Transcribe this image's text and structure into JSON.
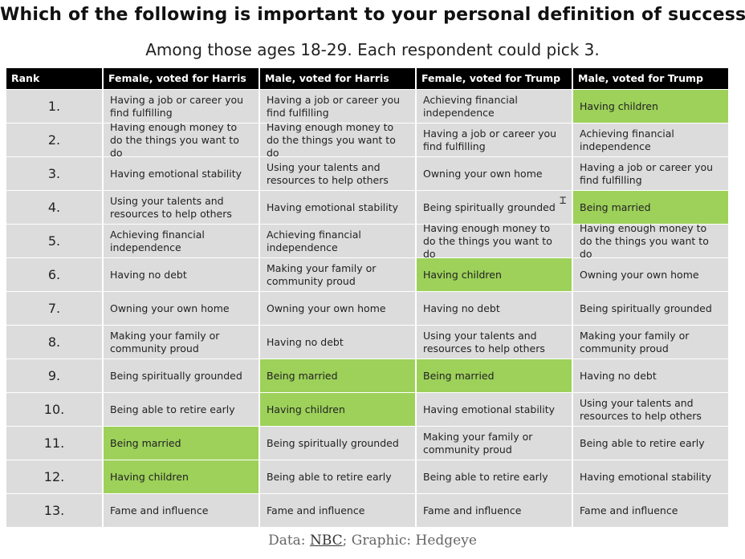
{
  "title": "Which of the following is important to your personal definition of success?",
  "subtitle": "Among those ages 18-29. Each respondent could pick 3.",
  "colors": {
    "header_bg": "#000000",
    "cell_bg": "#dcdcdc",
    "highlight": "#9dd15a"
  },
  "table": {
    "headers": [
      "Rank",
      "Female, voted for Harris",
      "Male, voted for Harris",
      "Female, voted for Trump",
      "Male, voted for Trump"
    ],
    "rows": [
      {
        "rank": "1.",
        "cells": [
          {
            "text": "Having a job or career you find fulfilling",
            "highlight": false
          },
          {
            "text": "Having a job or career you find fulfilling",
            "highlight": false
          },
          {
            "text": "Achieving financial independence",
            "highlight": false
          },
          {
            "text": "Having children",
            "highlight": true
          }
        ]
      },
      {
        "rank": "2.",
        "cells": [
          {
            "text": "Having enough money to do the things you want to do",
            "highlight": false
          },
          {
            "text": "Having enough money to do the things you want to do",
            "highlight": false
          },
          {
            "text": "Having a job or career you find fulfilling",
            "highlight": false
          },
          {
            "text": "Achieving financial independence",
            "highlight": false
          }
        ]
      },
      {
        "rank": "3.",
        "cells": [
          {
            "text": "Having emotional stability",
            "highlight": false
          },
          {
            "text": "Using your talents and resources to help others",
            "highlight": false
          },
          {
            "text": "Owning your own home",
            "highlight": false
          },
          {
            "text": "Having a job or career you find fulfilling",
            "highlight": false
          }
        ]
      },
      {
        "rank": "4.",
        "cells": [
          {
            "text": "Using your talents and resources to help others",
            "highlight": false
          },
          {
            "text": "Having emotional stability",
            "highlight": false
          },
          {
            "text": "Being spiritually grounded",
            "highlight": false
          },
          {
            "text": "Being married",
            "highlight": true
          }
        ]
      },
      {
        "rank": "5.",
        "cells": [
          {
            "text": "Achieving financial independence",
            "highlight": false
          },
          {
            "text": "Achieving financial independence",
            "highlight": false
          },
          {
            "text": "Having enough money to do the things you want to do",
            "highlight": false
          },
          {
            "text": "Having enough money to do the things you want to do",
            "highlight": false
          }
        ]
      },
      {
        "rank": "6.",
        "cells": [
          {
            "text": "Having no debt",
            "highlight": false
          },
          {
            "text": "Making your family or community proud",
            "highlight": false
          },
          {
            "text": "Having children",
            "highlight": true
          },
          {
            "text": "Owning your own home",
            "highlight": false
          }
        ]
      },
      {
        "rank": "7.",
        "cells": [
          {
            "text": "Owning your own home",
            "highlight": false
          },
          {
            "text": "Owning your own home",
            "highlight": false
          },
          {
            "text": "Having no debt",
            "highlight": false
          },
          {
            "text": "Being spiritually grounded",
            "highlight": false
          }
        ]
      },
      {
        "rank": "8.",
        "cells": [
          {
            "text": "Making your family or community proud",
            "highlight": false
          },
          {
            "text": "Having no debt",
            "highlight": false
          },
          {
            "text": "Using your talents and resources to help others",
            "highlight": false
          },
          {
            "text": "Making your family or community proud",
            "highlight": false
          }
        ]
      },
      {
        "rank": "9.",
        "cells": [
          {
            "text": "Being spiritually grounded",
            "highlight": false
          },
          {
            "text": "Being married",
            "highlight": true
          },
          {
            "text": "Being married",
            "highlight": true
          },
          {
            "text": "Having no debt",
            "highlight": false
          }
        ]
      },
      {
        "rank": "10.",
        "cells": [
          {
            "text": "Being able to retire early",
            "highlight": false
          },
          {
            "text": "Having children",
            "highlight": true
          },
          {
            "text": "Having emotional stability",
            "highlight": false
          },
          {
            "text": "Using your talents and resources to help others",
            "highlight": false
          }
        ]
      },
      {
        "rank": "11.",
        "cells": [
          {
            "text": "Being married",
            "highlight": true
          },
          {
            "text": "Being spiritually grounded",
            "highlight": false
          },
          {
            "text": "Making your family or community proud",
            "highlight": false
          },
          {
            "text": "Being able to retire early",
            "highlight": false
          }
        ]
      },
      {
        "rank": "12.",
        "cells": [
          {
            "text": "Having children",
            "highlight": true
          },
          {
            "text": "Being able to retire early",
            "highlight": false
          },
          {
            "text": "Being able to retire early",
            "highlight": false
          },
          {
            "text": "Having emotional stability",
            "highlight": false
          }
        ]
      },
      {
        "rank": "13.",
        "cells": [
          {
            "text": "Fame and influence",
            "highlight": false
          },
          {
            "text": "Fame and influence",
            "highlight": false
          },
          {
            "text": "Fame and influence",
            "highlight": false
          },
          {
            "text": "Fame and influence",
            "highlight": false
          }
        ]
      }
    ]
  },
  "cursor_icon": "text-cursor-icon",
  "footer": {
    "prefix": "Data: ",
    "link": "NBC",
    "suffix": "; Graphic: Hedgeye"
  }
}
